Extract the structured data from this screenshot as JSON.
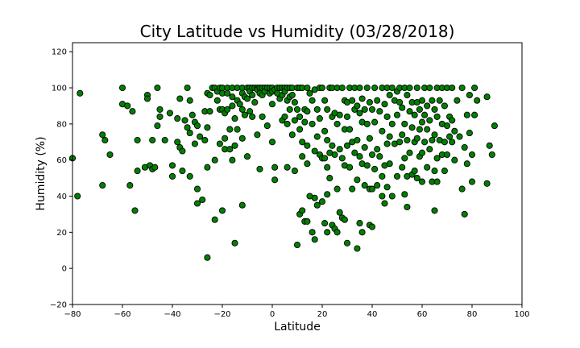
{
  "chart_data": {
    "type": "scatter",
    "title": "City Latitude vs Humidity (03/28/2018)",
    "xlabel": "Latitude",
    "ylabel": "Humidity (%)",
    "xlim": [
      -80,
      100
    ],
    "ylim": [
      -20,
      125
    ],
    "xticks": [
      -80,
      -60,
      -40,
      -20,
      0,
      20,
      40,
      60,
      80,
      100
    ],
    "yticks": [
      -20,
      0,
      20,
      40,
      60,
      80,
      100,
      120
    ],
    "grid": false,
    "marker_color": "#008000",
    "marker_edge": "#000000",
    "points": [
      [
        -80,
        61
      ],
      [
        -78,
        40
      ],
      [
        -77,
        97
      ],
      [
        -68,
        74
      ],
      [
        -68,
        46
      ],
      [
        -67,
        71
      ],
      [
        -65,
        63
      ],
      [
        -60,
        100
      ],
      [
        -60,
        91
      ],
      [
        -58,
        90
      ],
      [
        -57,
        46
      ],
      [
        -56,
        87
      ],
      [
        -55,
        32
      ],
      [
        -54,
        71
      ],
      [
        -54,
        54
      ],
      [
        -51,
        56
      ],
      [
        -50,
        96
      ],
      [
        -50,
        94
      ],
      [
        -49,
        57
      ],
      [
        -48,
        71
      ],
      [
        -48,
        55
      ],
      [
        -47,
        56
      ],
      [
        -46,
        79
      ],
      [
        -46,
        100
      ],
      [
        -45,
        88
      ],
      [
        -45,
        84
      ],
      [
        -43,
        71
      ],
      [
        -41,
        86
      ],
      [
        -40,
        57
      ],
      [
        -40,
        51
      ],
      [
        -38,
        83
      ],
      [
        -38,
        70
      ],
      [
        -37,
        94
      ],
      [
        -37,
        67
      ],
      [
        -36,
        65
      ],
      [
        -36,
        54
      ],
      [
        -35,
        82
      ],
      [
        -34,
        100
      ],
      [
        -34,
        78
      ],
      [
        -33,
        93
      ],
      [
        -33,
        75
      ],
      [
        -33,
        51
      ],
      [
        -32,
        85
      ],
      [
        -31,
        81
      ],
      [
        -31,
        69
      ],
      [
        -30,
        79
      ],
      [
        -30,
        44
      ],
      [
        -30,
        36
      ],
      [
        -29,
        73
      ],
      [
        -28,
        38
      ],
      [
        -27,
        87
      ],
      [
        -27,
        71
      ],
      [
        -26,
        97
      ],
      [
        -26,
        78
      ],
      [
        -26,
        56
      ],
      [
        -26,
        6
      ],
      [
        -25,
        87
      ],
      [
        -25,
        96
      ],
      [
        -24,
        100
      ],
      [
        -23,
        100
      ],
      [
        -23,
        60
      ],
      [
        -23,
        27
      ],
      [
        -22,
        98
      ],
      [
        -22,
        93
      ],
      [
        -21,
        100
      ],
      [
        -21,
        88
      ],
      [
        -21,
        69
      ],
      [
        -20,
        100
      ],
      [
        -20,
        97
      ],
      [
        -20,
        88
      ],
      [
        -20,
        32
      ],
      [
        -19,
        86
      ],
      [
        -19,
        72
      ],
      [
        -19,
        66
      ],
      [
        -18,
        100
      ],
      [
        -18,
        97
      ],
      [
        -18,
        88
      ],
      [
        -17,
        77
      ],
      [
        -17,
        66
      ],
      [
        -16,
        100
      ],
      [
        -16,
        95
      ],
      [
        -16,
        90
      ],
      [
        -16,
        60
      ],
      [
        -15,
        83
      ],
      [
        -15,
        68
      ],
      [
        -15,
        14
      ],
      [
        -14,
        100
      ],
      [
        -14,
        93
      ],
      [
        -14,
        77
      ],
      [
        -13,
        91
      ],
      [
        -12,
        100
      ],
      [
        -12,
        97
      ],
      [
        -12,
        88
      ],
      [
        -12,
        72
      ],
      [
        -12,
        35
      ],
      [
        -11,
        95
      ],
      [
        -11,
        85
      ],
      [
        -10,
        100
      ],
      [
        -10,
        94
      ],
      [
        -10,
        62
      ],
      [
        -9,
        100
      ],
      [
        -9,
        98
      ],
      [
        -9,
        87
      ],
      [
        -8,
        100
      ],
      [
        -8,
        96
      ],
      [
        -8,
        84
      ],
      [
        -7,
        100
      ],
      [
        -7,
        92
      ],
      [
        -6,
        100
      ],
      [
        -6,
        99
      ],
      [
        -6,
        74
      ],
      [
        -5,
        100
      ],
      [
        -5,
        97
      ],
      [
        -5,
        55
      ],
      [
        -4,
        100
      ],
      [
        -4,
        96
      ],
      [
        -4,
        84
      ],
      [
        -3,
        100
      ],
      [
        -3,
        98
      ],
      [
        -2,
        100
      ],
      [
        -2,
        79
      ],
      [
        -1,
        100
      ],
      [
        -1,
        97
      ],
      [
        0,
        100
      ],
      [
        0,
        98
      ],
      [
        0,
        91
      ],
      [
        0,
        70
      ],
      [
        1,
        99
      ],
      [
        1,
        56
      ],
      [
        1,
        49
      ],
      [
        2,
        100
      ],
      [
        2,
        97
      ],
      [
        3,
        100
      ],
      [
        3,
        94
      ],
      [
        4,
        100
      ],
      [
        4,
        96
      ],
      [
        4,
        82
      ],
      [
        5,
        100
      ],
      [
        5,
        98
      ],
      [
        5,
        84
      ],
      [
        6,
        100
      ],
      [
        6,
        93
      ],
      [
        6,
        80
      ],
      [
        6,
        56
      ],
      [
        7,
        100
      ],
      [
        7,
        95
      ],
      [
        7,
        88
      ],
      [
        8,
        100
      ],
      [
        8,
        96
      ],
      [
        8,
        74
      ],
      [
        9,
        92
      ],
      [
        9,
        82
      ],
      [
        9,
        54
      ],
      [
        10,
        100
      ],
      [
        10,
        88
      ],
      [
        10,
        13
      ],
      [
        11,
        100
      ],
      [
        11,
        84
      ],
      [
        11,
        77
      ],
      [
        11,
        30
      ],
      [
        12,
        100
      ],
      [
        12,
        70
      ],
      [
        12,
        62
      ],
      [
        12,
        32
      ],
      [
        13,
        88
      ],
      [
        13,
        81
      ],
      [
        13,
        26
      ],
      [
        14,
        100
      ],
      [
        14,
        87
      ],
      [
        14,
        68
      ],
      [
        14,
        58
      ],
      [
        14,
        26
      ],
      [
        15,
        97
      ],
      [
        15,
        40
      ],
      [
        16,
        93
      ],
      [
        16,
        80
      ],
      [
        16,
        20
      ],
      [
        17,
        99
      ],
      [
        17,
        65
      ],
      [
        17,
        39
      ],
      [
        17,
        16
      ],
      [
        18,
        88
      ],
      [
        18,
        73
      ],
      [
        18,
        35
      ],
      [
        19,
        100
      ],
      [
        19,
        83
      ],
      [
        19,
        63
      ],
      [
        20,
        100
      ],
      [
        20,
        61
      ],
      [
        20,
        37
      ],
      [
        21,
        93
      ],
      [
        21,
        76
      ],
      [
        21,
        61
      ],
      [
        21,
        25
      ],
      [
        22,
        88
      ],
      [
        22,
        71
      ],
      [
        22,
        56
      ],
      [
        22,
        41
      ],
      [
        22,
        20
      ],
      [
        23,
        100
      ],
      [
        23,
        64
      ],
      [
        23,
        50
      ],
      [
        24,
        100
      ],
      [
        24,
        84
      ],
      [
        24,
        68
      ],
      [
        24,
        24
      ],
      [
        25,
        86
      ],
      [
        25,
        63
      ],
      [
        25,
        22
      ],
      [
        26,
        100
      ],
      [
        26,
        80
      ],
      [
        26,
        44
      ],
      [
        26,
        20
      ],
      [
        27,
        85
      ],
      [
        27,
        66
      ],
      [
        27,
        31
      ],
      [
        28,
        100
      ],
      [
        28,
        61
      ],
      [
        28,
        28
      ],
      [
        29,
        93
      ],
      [
        29,
        77
      ],
      [
        29,
        57
      ],
      [
        29,
        27
      ],
      [
        30,
        92
      ],
      [
        30,
        84
      ],
      [
        30,
        68
      ],
      [
        30,
        14
      ],
      [
        31,
        100
      ],
      [
        31,
        77
      ],
      [
        31,
        56
      ],
      [
        32,
        93
      ],
      [
        32,
        70
      ],
      [
        32,
        44
      ],
      [
        33,
        100
      ],
      [
        33,
        88
      ],
      [
        33,
        64
      ],
      [
        34,
        90
      ],
      [
        34,
        71
      ],
      [
        34,
        49
      ],
      [
        34,
        11
      ],
      [
        35,
        100
      ],
      [
        35,
        86
      ],
      [
        35,
        62
      ],
      [
        35,
        25
      ],
      [
        36,
        94
      ],
      [
        36,
        81
      ],
      [
        36,
        58
      ],
      [
        36,
        20
      ],
      [
        37,
        88
      ],
      [
        37,
        67
      ],
      [
        37,
        46
      ],
      [
        38,
        100
      ],
      [
        38,
        80
      ],
      [
        38,
        57
      ],
      [
        39,
        92
      ],
      [
        39,
        72
      ],
      [
        39,
        44
      ],
      [
        39,
        24
      ],
      [
        40,
        88
      ],
      [
        40,
        63
      ],
      [
        40,
        44
      ],
      [
        40,
        23
      ],
      [
        41,
        100
      ],
      [
        41,
        81
      ],
      [
        41,
        55
      ],
      [
        42,
        93
      ],
      [
        42,
        66
      ],
      [
        42,
        46
      ],
      [
        43,
        87
      ],
      [
        43,
        62
      ],
      [
        44,
        100
      ],
      [
        44,
        76
      ],
      [
        44,
        51
      ],
      [
        44,
        40
      ],
      [
        45,
        91
      ],
      [
        45,
        57
      ],
      [
        45,
        36
      ],
      [
        46,
        100
      ],
      [
        46,
        84
      ],
      [
        46,
        69
      ],
      [
        46,
        45
      ],
      [
        47,
        96
      ],
      [
        47,
        73
      ],
      [
        47,
        58
      ],
      [
        48,
        100
      ],
      [
        48,
        80
      ],
      [
        48,
        40
      ],
      [
        49,
        93
      ],
      [
        49,
        69
      ],
      [
        50,
        98
      ],
      [
        50,
        85
      ],
      [
        50,
        51
      ],
      [
        51,
        100
      ],
      [
        51,
        92
      ],
      [
        51,
        70
      ],
      [
        52,
        89
      ],
      [
        52,
        74
      ],
      [
        52,
        56
      ],
      [
        53,
        100
      ],
      [
        53,
        80
      ],
      [
        53,
        61
      ],
      [
        53,
        41
      ],
      [
        54,
        96
      ],
      [
        54,
        71
      ],
      [
        54,
        51
      ],
      [
        54,
        34
      ],
      [
        55,
        100
      ],
      [
        55,
        87
      ],
      [
        55,
        64
      ],
      [
        56,
        92
      ],
      [
        56,
        78
      ],
      [
        56,
        52
      ],
      [
        57,
        85
      ],
      [
        57,
        70
      ],
      [
        57,
        54
      ],
      [
        58,
        100
      ],
      [
        58,
        92
      ],
      [
        58,
        72
      ],
      [
        58,
        50
      ],
      [
        59,
        88
      ],
      [
        59,
        77
      ],
      [
        59,
        62
      ],
      [
        60,
        93
      ],
      [
        60,
        81
      ],
      [
        60,
        64
      ],
      [
        60,
        48
      ],
      [
        61,
        100
      ],
      [
        61,
        85
      ],
      [
        61,
        70
      ],
      [
        62,
        90
      ],
      [
        62,
        77
      ],
      [
        62,
        56
      ],
      [
        63,
        100
      ],
      [
        63,
        82
      ],
      [
        63,
        66
      ],
      [
        64,
        93
      ],
      [
        64,
        71
      ],
      [
        64,
        48
      ],
      [
        65,
        88
      ],
      [
        65,
        74
      ],
      [
        65,
        54
      ],
      [
        65,
        32
      ],
      [
        66,
        100
      ],
      [
        66,
        84
      ],
      [
        66,
        61
      ],
      [
        66,
        48
      ],
      [
        67,
        93
      ],
      [
        67,
        71
      ],
      [
        68,
        100
      ],
      [
        68,
        80
      ],
      [
        68,
        63
      ],
      [
        69,
        90
      ],
      [
        69,
        70
      ],
      [
        69,
        54
      ],
      [
        70,
        100
      ],
      [
        70,
        79
      ],
      [
        70,
        63
      ],
      [
        71,
        84
      ],
      [
        71,
        73
      ],
      [
        72,
        100
      ],
      [
        72,
        82
      ],
      [
        72,
        70
      ],
      [
        73,
        76
      ],
      [
        73,
        60
      ],
      [
        74,
        93
      ],
      [
        75,
        73
      ],
      [
        76,
        100
      ],
      [
        76,
        44
      ],
      [
        77,
        67
      ],
      [
        77,
        30
      ],
      [
        78,
        85
      ],
      [
        78,
        58
      ],
      [
        79,
        96
      ],
      [
        79,
        75
      ],
      [
        80,
        63
      ],
      [
        80,
        48
      ],
      [
        81,
        100
      ],
      [
        81,
        85
      ],
      [
        82,
        93
      ],
      [
        86,
        95
      ],
      [
        86,
        47
      ],
      [
        87,
        68
      ],
      [
        88,
        63
      ],
      [
        89,
        79
      ]
    ]
  }
}
